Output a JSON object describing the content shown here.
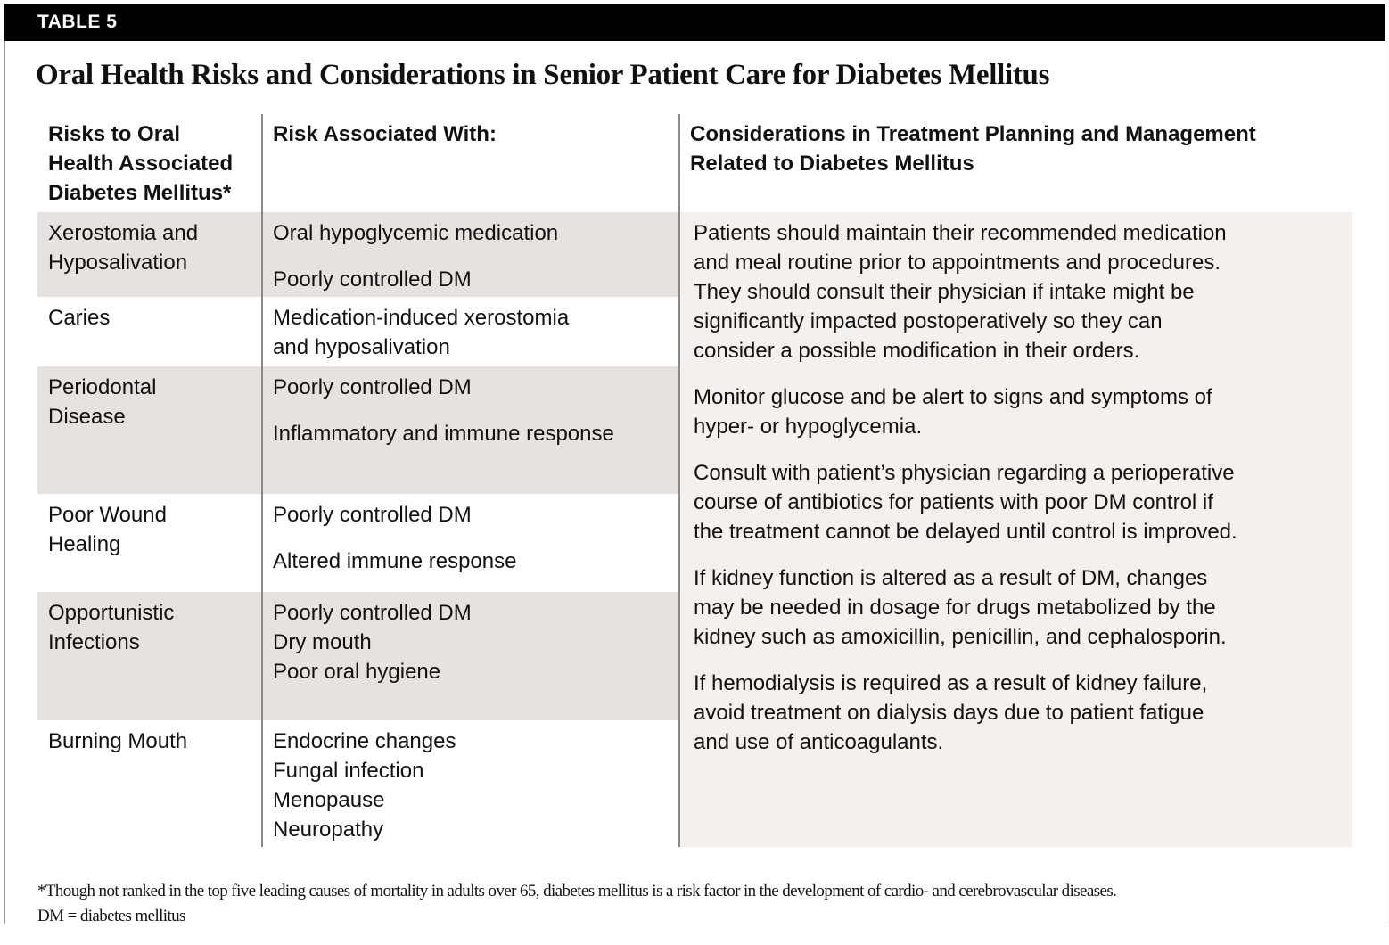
{
  "table_label": "TABLE 5",
  "title": "Oral Health Risks and Considerations in Senior Patient Care for Diabetes Mellitus",
  "colors": {
    "header_bar": "#000000",
    "shaded_row": "#e6e2df",
    "considerations_bg": "#f3f0ed"
  },
  "headers": {
    "col1": [
      "Risks to Oral",
      "Health Associated",
      "Diabetes Mellitus*"
    ],
    "col2": [
      "Risk Associated With:"
    ],
    "col3": [
      "Considerations in Treatment Planning and Management",
      "Related to Diabetes Mellitus"
    ]
  },
  "rows": [
    {
      "risk": [
        "Xerostomia and",
        "Hyposalivation"
      ],
      "associated": [
        [
          "Oral hypoglycemic medication"
        ],
        [
          "Poorly controlled DM"
        ]
      ]
    },
    {
      "risk": [
        "Caries"
      ],
      "associated": [
        [
          "Medication-induced xerostomia",
          "and hyposalivation"
        ]
      ]
    },
    {
      "risk": [
        "Periodontal",
        "Disease"
      ],
      "associated": [
        [
          "Poorly controlled DM"
        ],
        [
          "Inflammatory and immune response"
        ]
      ]
    },
    {
      "risk": [
        "Poor Wound",
        "Healing"
      ],
      "associated": [
        [
          "Poorly controlled DM"
        ],
        [
          "Altered immune response"
        ]
      ]
    },
    {
      "risk": [
        "Opportunistic",
        "Infections"
      ],
      "associated": [
        [
          "Poorly controlled DM",
          "Dry mouth",
          "Poor oral hygiene"
        ]
      ]
    },
    {
      "risk": [
        "Burning Mouth"
      ],
      "associated": [
        [
          "Endocrine changes",
          "Fungal infection",
          "Menopause",
          "Neuropathy"
        ]
      ]
    }
  ],
  "considerations": [
    [
      "Patients should maintain their recommended medication",
      "and meal routine prior to appointments and procedures.",
      "They should consult their physician if intake might be",
      "significantly impacted postoperatively so they can",
      "consider a possible modification in their orders."
    ],
    [
      "Monitor glucose and be alert to signs and symptoms of",
      "hyper- or hypoglycemia."
    ],
    [
      "Consult with patient’s physician regarding a perioperative",
      "course of antibiotics for patients with poor DM control if",
      "the treatment cannot be delayed until control is improved."
    ],
    [
      "If kidney function is altered as a result of DM, changes",
      "may be needed in dosage for drugs metabolized by the",
      "kidney such as amoxicillin, penicillin, and cephalosporin."
    ],
    [
      "If hemodialysis is required as a result of kidney failure,",
      "avoid treatment on dialysis days due to patient fatigue",
      "and use of anticoagulants."
    ]
  ],
  "footnotes": [
    "*Though not ranked in the top five leading causes of mortality in adults over 65, diabetes mellitus is a risk factor in the development of cardio- and cerebrovascular diseases.",
    "DM = diabetes mellitus"
  ]
}
